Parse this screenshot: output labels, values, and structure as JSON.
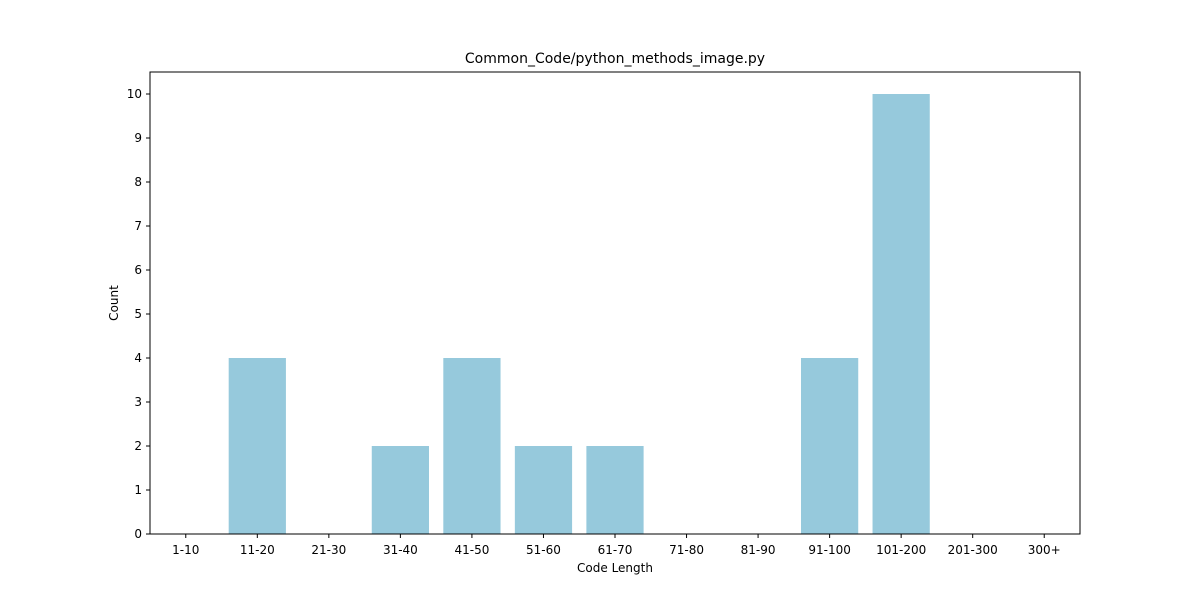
{
  "chart_data": {
    "type": "bar",
    "title": "Common_Code/python_methods_image.py",
    "xlabel": "Code Length",
    "ylabel": "Count",
    "categories": [
      "1-10",
      "11-20",
      "21-30",
      "31-40",
      "41-50",
      "51-60",
      "61-70",
      "71-80",
      "81-90",
      "91-100",
      "101-200",
      "201-300",
      "300+"
    ],
    "values": [
      0,
      4,
      0,
      2,
      4,
      2,
      2,
      0,
      0,
      4,
      10,
      0,
      0
    ],
    "ylim": [
      0,
      10.5
    ],
    "yticks": [
      0,
      1,
      2,
      3,
      4,
      5,
      6,
      7,
      8,
      9,
      10
    ],
    "bar_color": "#96c9dc",
    "grid": false,
    "legend": "none"
  }
}
